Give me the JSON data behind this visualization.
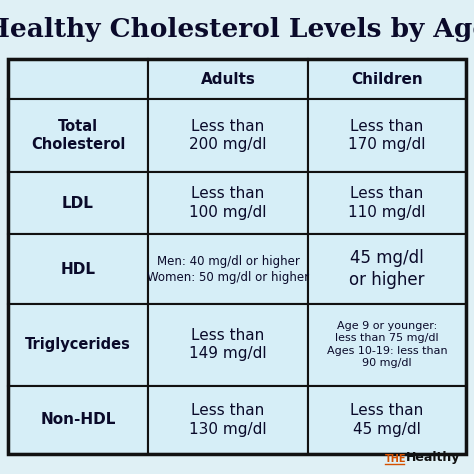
{
  "title": "Healthy Cholesterol Levels by Age",
  "background_color": "#dff0f5",
  "table_bg": "#d6eef7",
  "border_color": "#111111",
  "title_color": "#0a0a2a",
  "col_headers": [
    "Adults",
    "Children"
  ],
  "row_labels": [
    "Total\nCholesterol",
    "LDL",
    "HDL",
    "Triglycerides",
    "Non-HDL"
  ],
  "adults_values": [
    "Less than\n200 mg/dl",
    "Less than\n100 mg/dl",
    "Men: 40 mg/dl or higher\nWomen: 50 mg/dl or higher",
    "Less than\n149 mg/dl",
    "Less than\n130 mg/dl"
  ],
  "children_values": [
    "Less than\n170 mg/dl",
    "Less than\n110 mg/dl",
    "45 mg/dl\nor higher",
    "Age 9 or younger:\nless than 75 mg/dl\nAges 10-19: less than\n90 mg/dl",
    "Less than\n45 mg/dl"
  ],
  "watermark_the": "THE",
  "watermark_healthy": "Healthy",
  "watermark_color_the": "#d45000",
  "watermark_color_healthy": "#111111",
  "title_fontsize": 19,
  "header_fontsize": 11,
  "row_label_fontsizes": [
    10.5,
    11,
    11,
    10.5,
    11
  ],
  "adults_fontsizes": [
    11,
    11,
    8.5,
    11,
    11
  ],
  "children_fontsizes": [
    11,
    11,
    12,
    8.0,
    11
  ]
}
